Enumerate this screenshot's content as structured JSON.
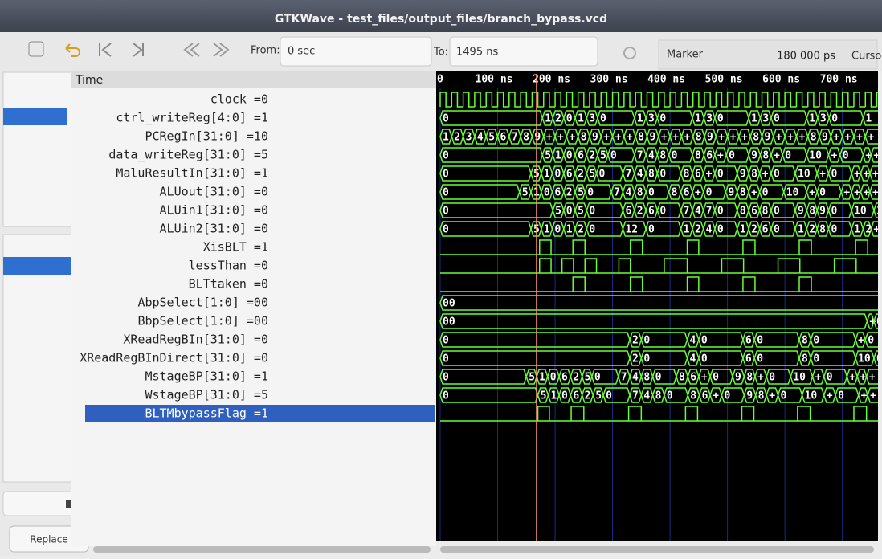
{
  "window_title": "GTKWave - test_files/output_files/branch_bypass.vcd",
  "toolbar": {
    "from_label": "From:",
    "from_value": "0 sec",
    "to_label": "To:",
    "to_value": "1495 ns",
    "marker_label": "Marker",
    "marker_value": "180 000 ps",
    "cursor_label": "Curso"
  },
  "signals_header": "Time",
  "replace_button": "Replace",
  "waves": {
    "xlim": [
      0,
      762
    ],
    "xticks": [
      {
        "value": 0,
        "label": "0"
      },
      {
        "value": 100,
        "label": "100 ns"
      },
      {
        "value": 200,
        "label": "200 ns"
      },
      {
        "value": 300,
        "label": "300 ns"
      },
      {
        "value": 400,
        "label": "400 ns"
      },
      {
        "value": 500,
        "label": "500 ns"
      },
      {
        "value": 600,
        "label": "600 ns"
      },
      {
        "value": 700,
        "label": "700 ns"
      }
    ],
    "selected": 17,
    "signals": [
      {
        "label": "clock =0",
        "kind": "clock",
        "period": 20
      },
      {
        "label": "ctrl_writeReg[4:0] =1",
        "kind": "bus",
        "wave": [
          [
            0,
            "0"
          ],
          [
            178,
            "1"
          ],
          [
            196,
            "2"
          ],
          [
            215,
            "0"
          ],
          [
            235,
            "1"
          ],
          [
            255,
            "3"
          ],
          [
            274,
            "0"
          ],
          [
            338,
            "1"
          ],
          [
            358,
            "3"
          ],
          [
            378,
            "0"
          ],
          [
            439,
            "1"
          ],
          [
            459,
            "3"
          ],
          [
            478,
            "0"
          ],
          [
            537,
            "1"
          ],
          [
            557,
            "3"
          ],
          [
            576,
            "0"
          ],
          [
            638,
            "1"
          ],
          [
            657,
            "3"
          ],
          [
            677,
            "0"
          ],
          [
            736,
            "1"
          ]
        ]
      },
      {
        "label": "PCRegIn[31:0] =10",
        "kind": "bus",
        "wave": [
          [
            0,
            "1"
          ],
          [
            20,
            "2"
          ],
          [
            40,
            "3"
          ],
          [
            60,
            "4"
          ],
          [
            80,
            "5"
          ],
          [
            100,
            "6"
          ],
          [
            120,
            "7"
          ],
          [
            140,
            "8"
          ],
          [
            160,
            "9"
          ],
          [
            180,
            "+"
          ],
          [
            200,
            "+"
          ],
          [
            220,
            "+"
          ],
          [
            240,
            "8"
          ],
          [
            260,
            "9"
          ],
          [
            280,
            "+"
          ],
          [
            300,
            "+"
          ],
          [
            320,
            "+"
          ],
          [
            340,
            "8"
          ],
          [
            360,
            "9"
          ],
          [
            380,
            "+"
          ],
          [
            400,
            "+"
          ],
          [
            420,
            "+"
          ],
          [
            440,
            "8"
          ],
          [
            460,
            "9"
          ],
          [
            480,
            "+"
          ],
          [
            500,
            "+"
          ],
          [
            520,
            "+"
          ],
          [
            540,
            "8"
          ],
          [
            560,
            "9"
          ],
          [
            580,
            "+"
          ],
          [
            600,
            "+"
          ],
          [
            620,
            "+"
          ],
          [
            640,
            "8"
          ],
          [
            660,
            "9"
          ],
          [
            680,
            "+"
          ],
          [
            700,
            "+"
          ],
          [
            720,
            "+"
          ],
          [
            740,
            "+"
          ]
        ]
      },
      {
        "label": "data_writeReg[31:0] =5",
        "kind": "bus",
        "wave": [
          [
            0,
            "0"
          ],
          [
            178,
            "5"
          ],
          [
            196,
            "1"
          ],
          [
            215,
            "0"
          ],
          [
            235,
            "6"
          ],
          [
            255,
            "2"
          ],
          [
            274,
            "5"
          ],
          [
            292,
            "0"
          ],
          [
            338,
            "7"
          ],
          [
            358,
            "4"
          ],
          [
            378,
            "8"
          ],
          [
            398,
            "0"
          ],
          [
            439,
            "8"
          ],
          [
            459,
            "6"
          ],
          [
            478,
            "+"
          ],
          [
            498,
            "0"
          ],
          [
            537,
            "9"
          ],
          [
            557,
            "8"
          ],
          [
            576,
            "+"
          ],
          [
            596,
            "0"
          ],
          [
            638,
            "10"
          ],
          [
            676,
            "+"
          ],
          [
            696,
            "0"
          ],
          [
            736,
            "+"
          ],
          [
            750,
            "+"
          ]
        ]
      },
      {
        "label": "MaluResultIn[31:0] =1",
        "kind": "bus",
        "wave": [
          [
            0,
            "0"
          ],
          [
            158,
            "5"
          ],
          [
            176,
            "1"
          ],
          [
            195,
            "0"
          ],
          [
            215,
            "6"
          ],
          [
            235,
            "2"
          ],
          [
            255,
            "5"
          ],
          [
            272,
            "0"
          ],
          [
            318,
            "7"
          ],
          [
            338,
            "4"
          ],
          [
            358,
            "8"
          ],
          [
            378,
            "0"
          ],
          [
            419,
            "8"
          ],
          [
            439,
            "6"
          ],
          [
            458,
            "+"
          ],
          [
            478,
            "0"
          ],
          [
            517,
            "9"
          ],
          [
            537,
            "8"
          ],
          [
            556,
            "+"
          ],
          [
            576,
            "0"
          ],
          [
            618,
            "10"
          ],
          [
            656,
            "+"
          ],
          [
            676,
            "0"
          ],
          [
            716,
            "+"
          ],
          [
            732,
            "+"
          ],
          [
            748,
            "+"
          ]
        ]
      },
      {
        "label": "ALUout[31:0] =0",
        "kind": "bus",
        "wave": [
          [
            0,
            "0"
          ],
          [
            138,
            "5"
          ],
          [
            158,
            "1"
          ],
          [
            176,
            "0"
          ],
          [
            195,
            "6"
          ],
          [
            215,
            "2"
          ],
          [
            235,
            "5"
          ],
          [
            252,
            "0"
          ],
          [
            298,
            "7"
          ],
          [
            318,
            "4"
          ],
          [
            338,
            "8"
          ],
          [
            358,
            "0"
          ],
          [
            398,
            "8"
          ],
          [
            419,
            "6"
          ],
          [
            439,
            "+"
          ],
          [
            458,
            "0"
          ],
          [
            497,
            "9"
          ],
          [
            517,
            "8"
          ],
          [
            537,
            "+"
          ],
          [
            556,
            "0"
          ],
          [
            598,
            "10"
          ],
          [
            638,
            "+"
          ],
          [
            656,
            "0"
          ],
          [
            698,
            "+"
          ],
          [
            716,
            "+"
          ],
          [
            732,
            "+"
          ],
          [
            748,
            "+"
          ]
        ]
      },
      {
        "label": "ALUin1[31:0] =0",
        "kind": "bus",
        "wave": [
          [
            0,
            "0"
          ],
          [
            196,
            "5"
          ],
          [
            215,
            "0"
          ],
          [
            235,
            "5"
          ],
          [
            255,
            "0"
          ],
          [
            318,
            "6"
          ],
          [
            338,
            "2"
          ],
          [
            358,
            "6"
          ],
          [
            378,
            "0"
          ],
          [
            419,
            "7"
          ],
          [
            439,
            "4"
          ],
          [
            458,
            "7"
          ],
          [
            478,
            "0"
          ],
          [
            517,
            "8"
          ],
          [
            537,
            "6"
          ],
          [
            556,
            "8"
          ],
          [
            576,
            "0"
          ],
          [
            618,
            "9"
          ],
          [
            638,
            "8"
          ],
          [
            656,
            "9"
          ],
          [
            676,
            "0"
          ],
          [
            716,
            "10"
          ],
          [
            755,
            "1"
          ]
        ]
      },
      {
        "label": "ALUin2[31:0] =0",
        "kind": "bus",
        "wave": [
          [
            0,
            "0"
          ],
          [
            158,
            "5"
          ],
          [
            176,
            "1"
          ],
          [
            195,
            "0"
          ],
          [
            215,
            "1"
          ],
          [
            235,
            "2"
          ],
          [
            255,
            "0"
          ],
          [
            318,
            "12"
          ],
          [
            358,
            "0"
          ],
          [
            419,
            "1"
          ],
          [
            439,
            "2"
          ],
          [
            458,
            "4"
          ],
          [
            478,
            "0"
          ],
          [
            517,
            "1"
          ],
          [
            537,
            "2"
          ],
          [
            556,
            "6"
          ],
          [
            576,
            "0"
          ],
          [
            618,
            "1"
          ],
          [
            638,
            "2"
          ],
          [
            656,
            "8"
          ],
          [
            676,
            "0"
          ],
          [
            716,
            "1"
          ],
          [
            736,
            "2"
          ],
          [
            750,
            "+"
          ]
        ]
      },
      {
        "label": "XisBLT =1",
        "kind": "bit",
        "high": [
          [
            173,
            193
          ],
          [
            231,
            252
          ],
          [
            331,
            352
          ],
          [
            430,
            450
          ],
          [
            527,
            548
          ],
          [
            625,
            646
          ],
          [
            723,
            744
          ]
        ]
      },
      {
        "label": "lessThan =0",
        "kind": "bit",
        "high": [
          [
            173,
            193
          ],
          [
            212,
            232
          ],
          [
            252,
            272
          ],
          [
            311,
            331
          ],
          [
            390,
            430
          ],
          [
            490,
            528
          ],
          [
            588,
            626
          ],
          [
            686,
            724
          ]
        ]
      },
      {
        "label": "BLTtaken =0",
        "kind": "bit",
        "high": [
          [
            231,
            252
          ],
          [
            331,
            352
          ],
          [
            430,
            450
          ],
          [
            527,
            548
          ],
          [
            625,
            646
          ]
        ]
      },
      {
        "label": "AbpSelect[1:0] =00",
        "kind": "bus",
        "wave": [
          [
            0,
            "00"
          ]
        ]
      },
      {
        "label": "BbpSelect[1:0] =00",
        "kind": "bus",
        "wave": [
          [
            0,
            "00"
          ],
          [
            743,
            "+"
          ],
          [
            755,
            "0"
          ]
        ]
      },
      {
        "label": "XReadRegBIn[31:0] =0",
        "kind": "bus",
        "wave": [
          [
            0,
            "0"
          ],
          [
            330,
            "2"
          ],
          [
            350,
            "0"
          ],
          [
            430,
            "4"
          ],
          [
            450,
            "0"
          ],
          [
            527,
            "6"
          ],
          [
            547,
            "0"
          ],
          [
            625,
            "8"
          ],
          [
            645,
            "0"
          ],
          [
            723,
            "+"
          ],
          [
            740,
            "0"
          ]
        ]
      },
      {
        "label": "XReadRegBInDirect[31:0] =0",
        "kind": "bus",
        "wave": [
          [
            0,
            "0"
          ],
          [
            330,
            "2"
          ],
          [
            350,
            "0"
          ],
          [
            430,
            "4"
          ],
          [
            450,
            "0"
          ],
          [
            527,
            "6"
          ],
          [
            547,
            "0"
          ],
          [
            625,
            "8"
          ],
          [
            645,
            "0"
          ],
          [
            723,
            "10"
          ],
          [
            755,
            "0"
          ]
        ]
      },
      {
        "label": "MstageBP[31:0] =1",
        "kind": "bus",
        "wave": [
          [
            0,
            "0"
          ],
          [
            150,
            "5"
          ],
          [
            168,
            "1"
          ],
          [
            187,
            "0"
          ],
          [
            207,
            "6"
          ],
          [
            227,
            "2"
          ],
          [
            247,
            "5"
          ],
          [
            264,
            "0"
          ],
          [
            310,
            "7"
          ],
          [
            330,
            "4"
          ],
          [
            350,
            "8"
          ],
          [
            370,
            "0"
          ],
          [
            411,
            "8"
          ],
          [
            431,
            "6"
          ],
          [
            450,
            "+"
          ],
          [
            470,
            "0"
          ],
          [
            509,
            "9"
          ],
          [
            529,
            "8"
          ],
          [
            548,
            "+"
          ],
          [
            568,
            "0"
          ],
          [
            610,
            "10"
          ],
          [
            648,
            "+"
          ],
          [
            668,
            "0"
          ],
          [
            708,
            "+"
          ],
          [
            726,
            "+"
          ],
          [
            742,
            "+"
          ]
        ]
      },
      {
        "label": "WstageBP[31:0] =5",
        "kind": "bus",
        "wave": [
          [
            0,
            "0"
          ],
          [
            170,
            "5"
          ],
          [
            188,
            "1"
          ],
          [
            207,
            "0"
          ],
          [
            227,
            "6"
          ],
          [
            247,
            "2"
          ],
          [
            266,
            "5"
          ],
          [
            284,
            "0"
          ],
          [
            330,
            "7"
          ],
          [
            350,
            "4"
          ],
          [
            370,
            "8"
          ],
          [
            390,
            "0"
          ],
          [
            431,
            "8"
          ],
          [
            451,
            "6"
          ],
          [
            470,
            "+"
          ],
          [
            490,
            "0"
          ],
          [
            529,
            "9"
          ],
          [
            549,
            "8"
          ],
          [
            568,
            "+"
          ],
          [
            588,
            "0"
          ],
          [
            630,
            "10"
          ],
          [
            668,
            "+"
          ],
          [
            688,
            "0"
          ],
          [
            728,
            "+"
          ],
          [
            744,
            "+"
          ]
        ]
      },
      {
        "label": "BLTMbypassFlag =1",
        "kind": "bit",
        "high": [
          [
            170,
            190
          ],
          [
            228,
            250
          ],
          [
            328,
            350
          ],
          [
            427,
            448
          ],
          [
            525,
            546
          ],
          [
            622,
            644
          ],
          [
            720,
            742
          ]
        ]
      }
    ]
  }
}
